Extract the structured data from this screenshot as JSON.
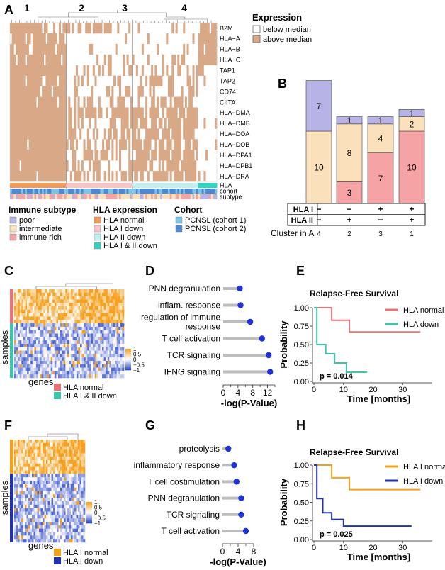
{
  "panels": {
    "A": "A",
    "B": "B",
    "C": "C",
    "D": "D",
    "E": "E",
    "F": "F",
    "G": "G",
    "H": "H"
  },
  "colors": {
    "tan": "#d9a987",
    "poor": "#b7b3e6",
    "intermediate": "#fae1bb",
    "immune_rich": "#f6a3a6",
    "hla_normal": "#f29b58",
    "hla_i_down": "#f8c4c5",
    "hla_ii_down": "#bfeff0",
    "hla_both_down": "#2fd4c3",
    "cohort1": "#7ec4e4",
    "cohort2": "#4f87d4",
    "km_red": "#e87375",
    "km_teal": "#3dc4aa",
    "km_orange": "#f2a31e",
    "km_blue": "#2233aa",
    "lollipop": "#1f33d6"
  },
  "panel_a": {
    "cluster_labels": [
      "1",
      "2",
      "3",
      "4"
    ],
    "genes": [
      "B2M",
      "HLA−A",
      "HLA−B",
      "HLA−C",
      "TAP1",
      "TAP2",
      "CD74",
      "CIITA",
      "HLA−DMA",
      "HLA−DMB",
      "HLA−DOA",
      "HLA−DOB",
      "HLA−DPA1",
      "HLA−DPB1",
      "HLA−DRA"
    ],
    "annotation_labels": [
      "HLA",
      "cohort",
      "subtype"
    ],
    "expression_legend": {
      "title": "Expression",
      "items": [
        "below median",
        "above median"
      ]
    },
    "legends": [
      {
        "title": "Immune subtype",
        "items": [
          "poor",
          "intermediate",
          "immune rich"
        ]
      },
      {
        "title": "HLA expression",
        "items": [
          "HLA normal",
          "HLA I down",
          "HLA II down",
          "HLA I & II down"
        ]
      },
      {
        "title": "Cohort",
        "items": [
          "PCNSL (cohort 1)",
          "PCNSL (cohort 2)"
        ]
      }
    ]
  },
  "panel_b": {
    "chart_data": {
      "type": "bar",
      "stacked": true,
      "categories": [
        "4",
        "2",
        "3",
        "1"
      ],
      "series": [
        {
          "name": "immune rich",
          "values": [
            0,
            3,
            7,
            10
          ]
        },
        {
          "name": "intermediate",
          "values": [
            10,
            8,
            4,
            2
          ]
        },
        {
          "name": "poor",
          "values": [
            7,
            1,
            1,
            1
          ]
        }
      ],
      "value_labels": [
        [
          "",
          "10",
          "7"
        ],
        [
          "3",
          "8",
          "1"
        ],
        [
          "7",
          "4",
          "1"
        ],
        [
          "10",
          "2",
          "1"
        ]
      ]
    },
    "row_labels": [
      "HLA I",
      "HLA II"
    ],
    "hla1": [
      "−",
      "−",
      "+",
      "+"
    ],
    "hla2": [
      "−",
      "+",
      "−",
      "+"
    ],
    "cluster_caption": "Cluster in A"
  },
  "panel_c": {
    "ylabel": "samples",
    "xlabel": "genes",
    "scale_ticks": [
      "1",
      "0.5",
      "0",
      "−0.5",
      "−1"
    ],
    "legend": [
      "HLA normal",
      "HLA I & II down"
    ]
  },
  "panel_d": {
    "chart_data": {
      "type": "lollipop",
      "terms": [
        "PNN degranulation",
        "inflam. response",
        "regulation of immune response",
        "T cell activation",
        "TCR signaling",
        "IFNG signaling"
      ],
      "term_display": [
        [
          "PNN degranulation"
        ],
        [
          "inflam. response"
        ],
        [
          "regulation of immune",
          "response"
        ],
        [
          "T cell activation"
        ],
        [
          "TCR signaling"
        ],
        [
          "IFNG signaling"
        ]
      ],
      "values": [
        4.5,
        4.7,
        7.3,
        10.5,
        12.3,
        12.7
      ],
      "xlim": [
        0,
        14
      ],
      "ticks": [
        "0",
        "4",
        "8",
        "12"
      ],
      "minor_ticks": [
        2,
        6,
        10,
        14
      ],
      "xlabel": "-log(P-Value)"
    }
  },
  "panel_e": {
    "chart_data": {
      "type": "line",
      "title": "Relapse-Free Survival",
      "xlabel": "Time [months]",
      "ylabel": "Probability",
      "xlim": [
        0,
        40
      ],
      "ylim": [
        0,
        1
      ],
      "xticks": [
        "0",
        "10",
        "20",
        "30"
      ],
      "yticks": [
        "1.00",
        "0.75",
        "0.50",
        "0.25",
        "0.00"
      ],
      "series": [
        {
          "name": "HLA normal",
          "steps": [
            [
              0,
              1.0
            ],
            [
              6,
              1.0
            ],
            [
              6,
              0.83
            ],
            [
              12,
              0.83
            ],
            [
              12,
              0.67
            ],
            [
              36,
              0.67
            ]
          ]
        },
        {
          "name": "HLA down",
          "steps": [
            [
              0,
              1.0
            ],
            [
              1,
              1.0
            ],
            [
              1,
              0.5
            ],
            [
              4,
              0.5
            ],
            [
              4,
              0.375
            ],
            [
              7,
              0.375
            ],
            [
              7,
              0.25
            ],
            [
              11,
              0.25
            ],
            [
              11,
              0.125
            ],
            [
              18,
              0.125
            ]
          ]
        }
      ],
      "pvalue": "p = 0.014"
    }
  },
  "panel_f": {
    "ylabel": "samples",
    "xlabel": "genes",
    "scale_ticks": [
      "1",
      "0.5",
      "0",
      "−0.5",
      "−1"
    ],
    "legend": [
      "HLA I normal",
      "HLA I down"
    ]
  },
  "panel_g": {
    "chart_data": {
      "type": "lollipop",
      "terms": [
        "proteolysis",
        "inflammatory response",
        "T cell costimulation",
        "PNN degranulation",
        "TCR signaling",
        "T cell activation"
      ],
      "values": [
        1.5,
        3.0,
        3.6,
        4.8,
        4.8,
        6.0
      ],
      "xlim": [
        0,
        8
      ],
      "ticks": [
        "0",
        "4",
        "8"
      ],
      "minor_ticks": [
        2,
        6
      ],
      "xlabel": "-log(P-Value)"
    }
  },
  "panel_h": {
    "chart_data": {
      "type": "line",
      "title": "Relapse-Free Survival",
      "xlabel": "Time [months]",
      "ylabel": "Probability",
      "xlim": [
        0,
        40
      ],
      "ylim": [
        0,
        1
      ],
      "xticks": [
        "0",
        "10",
        "20",
        "30"
      ],
      "yticks": [
        "1.00",
        "0.75",
        "0.50",
        "0.25",
        "0.00"
      ],
      "series": [
        {
          "name": "HLA I normal",
          "steps": [
            [
              0,
              1.0
            ],
            [
              6,
              1.0
            ],
            [
              6,
              0.83
            ],
            [
              12,
              0.83
            ],
            [
              12,
              0.67
            ],
            [
              36,
              0.67
            ]
          ]
        },
        {
          "name": "HLA I down",
          "steps": [
            [
              0,
              1.0
            ],
            [
              1,
              1.0
            ],
            [
              1,
              0.55
            ],
            [
              3,
              0.55
            ],
            [
              3,
              0.36
            ],
            [
              6,
              0.36
            ],
            [
              6,
              0.27
            ],
            [
              10,
              0.27
            ],
            [
              10,
              0.18
            ],
            [
              33,
              0.18
            ]
          ]
        }
      ],
      "pvalue": "p = 0.025"
    }
  }
}
